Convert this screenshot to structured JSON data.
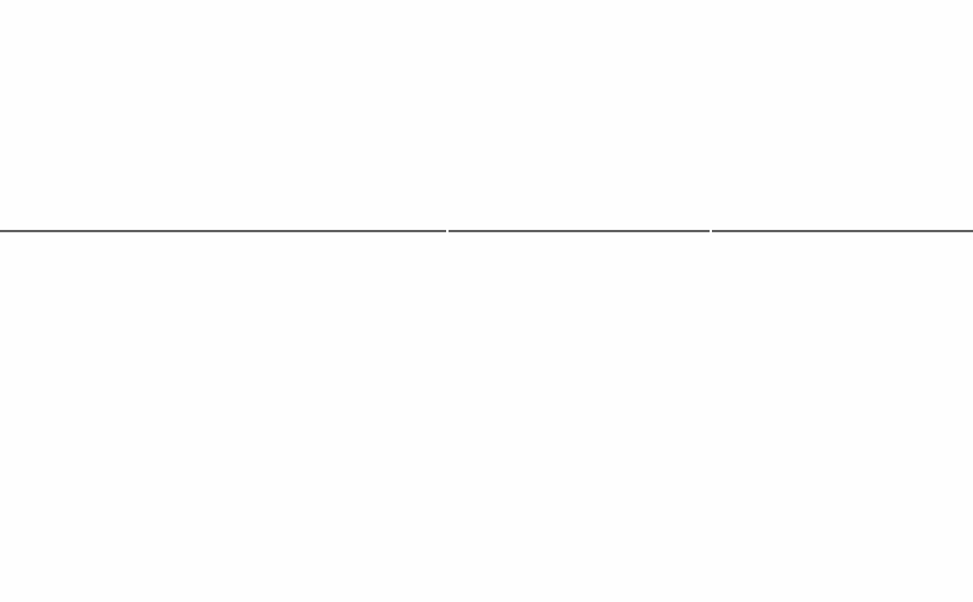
{
  "colors": {
    "background": "#fefefe",
    "divider": "#5f5f5f"
  }
}
